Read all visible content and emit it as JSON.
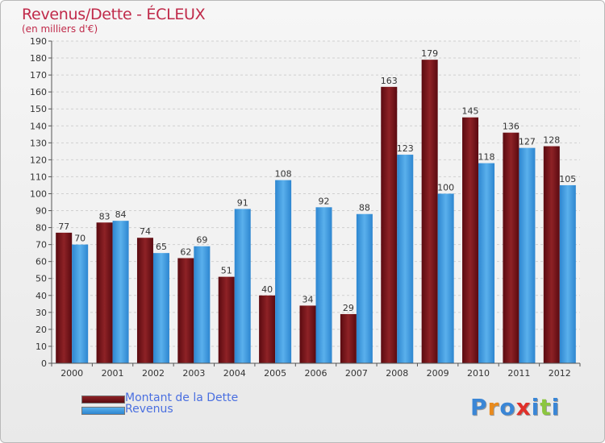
{
  "title": "Revenus/Dette - ÉCLEUX",
  "subtitle": "(en milliers d'€)",
  "colors": {
    "dette": "#6b0c12",
    "revenus": "#3d97de",
    "text": "#c02a4a",
    "legend_text": "#4a6fe0"
  },
  "legend": [
    {
      "label": "Montant de la Dette"
    },
    {
      "label": "Revenus"
    }
  ],
  "logo": {
    "letters": [
      "P",
      "r",
      "o",
      "x",
      "i",
      "t",
      "i"
    ],
    "colors": [
      "#3a86d6",
      "#e98a1c",
      "#3a86d6",
      "#e0302a",
      "#3a86d6",
      "#8cc63f",
      "#3a86d6"
    ]
  },
  "chart_data": {
    "type": "bar",
    "title": "Revenus/Dette - ÉCLEUX",
    "subtitle": "(en milliers d'€)",
    "categories": [
      "2000",
      "2001",
      "2002",
      "2003",
      "2004",
      "2005",
      "2006",
      "2007",
      "2008",
      "2009",
      "2010",
      "2011",
      "2012"
    ],
    "series": [
      {
        "name": "Montant de la Dette",
        "values": [
          77,
          83,
          74,
          62,
          51,
          40,
          34,
          29,
          163,
          179,
          145,
          136,
          128
        ]
      },
      {
        "name": "Revenus",
        "values": [
          70,
          84,
          65,
          69,
          91,
          108,
          92,
          88,
          123,
          100,
          118,
          127,
          105
        ]
      }
    ],
    "ylim": [
      0,
      190
    ],
    "ytick_step": 10,
    "grid": true,
    "legend_position": "bottom-left"
  }
}
